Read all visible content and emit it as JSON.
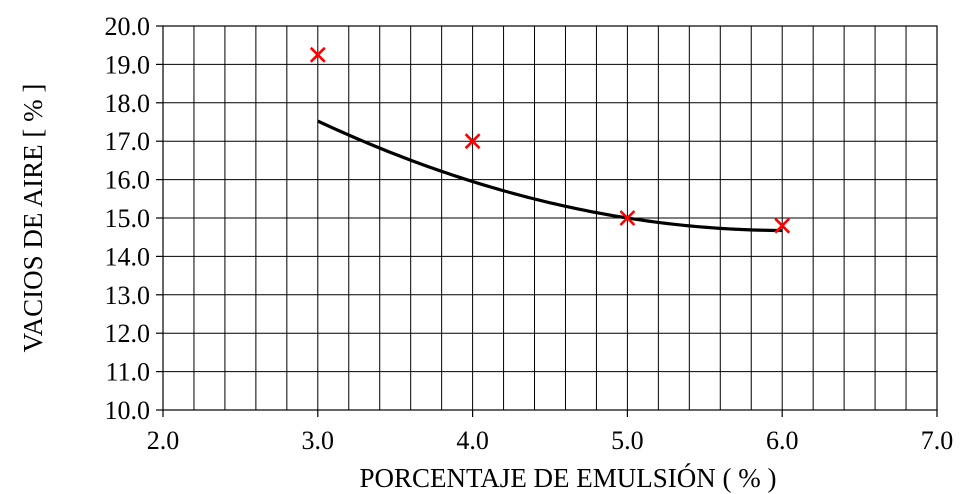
{
  "chart_data": {
    "type": "scatter",
    "title": "",
    "xlabel": "PORCENTAJE DE EMULSIÓN ( % )",
    "ylabel": "VACIOS DE AIRE [ % ]",
    "xlim": [
      2.0,
      7.0
    ],
    "ylim": [
      10.0,
      20.0
    ],
    "x_ticks": [
      "2.0",
      "3.0",
      "4.0",
      "5.0",
      "6.0",
      "7.0"
    ],
    "y_ticks": [
      "10.0",
      "11.0",
      "12.0",
      "13.0",
      "14.0",
      "15.0",
      "16.0",
      "17.0",
      "18.0",
      "19.0",
      "20.0"
    ],
    "grid": true,
    "x_minor_step": 0.2,
    "y_minor_step": 1.0,
    "series": [
      {
        "marker": "x",
        "color": "#ff0000",
        "x": [
          3.0,
          4.0,
          5.0,
          6.0
        ],
        "y": [
          19.25,
          17.0,
          15.0,
          14.8
        ]
      }
    ],
    "trendline": {
      "type": "polynomial",
      "color": "#000000",
      "x_range": [
        3.0,
        6.0
      ],
      "coefficients": [
        0.3125,
        -3.7625,
        26.0
      ]
    }
  }
}
